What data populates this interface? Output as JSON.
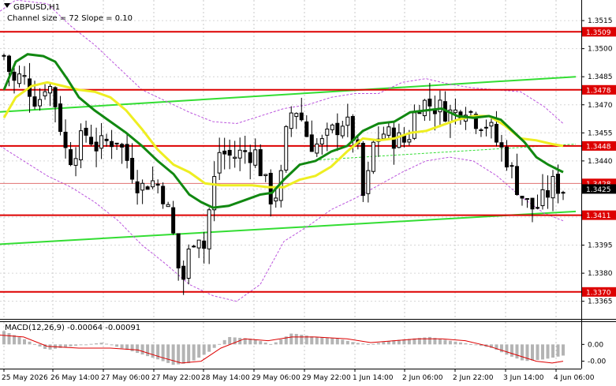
{
  "chart_data": {
    "type": "candlestick",
    "symbol_title": "GBPUSD,H1",
    "indicator_note": "Channel size = 72 Slope = 0.10",
    "y_range": [
      1.3356,
      1.3526
    ],
    "y_ticks": [
      1.3515,
      1.35,
      1.3485,
      1.347,
      1.3455,
      1.344,
      1.3425,
      1.341,
      1.3395,
      1.338,
      1.3365
    ],
    "x_range": [
      0,
      730
    ],
    "x_ticks": [
      "25 May 2026",
      "26 May 14:00",
      "27 May 06:00",
      "27 May 22:00",
      "28 May 14:00",
      "29 May 06:00",
      "29 May 22:00",
      "1 Jun 14:00",
      "2 Jun 06:00",
      "2 Jun 22:00",
      "3 Jun 14:00",
      "4 Jun 06:00"
    ],
    "x_tick_pos": [
      5,
      67,
      131,
      195,
      258,
      322,
      386,
      450,
      513,
      577,
      641,
      705
    ],
    "current_price": "1.3425",
    "level_color": "#dd0000",
    "levels": [
      {
        "value": 1.3509,
        "label": "1.3509"
      },
      {
        "value": 1.3478,
        "label": "1.3478"
      },
      {
        "value": 1.3448,
        "label": "1.3448"
      },
      {
        "value": 1.3411,
        "label": "1.3411"
      },
      {
        "value": 1.337,
        "label": "1.3370"
      }
    ],
    "tags": [
      {
        "value": 1.3509,
        "label": "1.3509",
        "kind": "level"
      },
      {
        "value": 1.3478,
        "label": "1.3478",
        "kind": "level"
      },
      {
        "value": 1.3448,
        "label": "1.3448",
        "kind": "level"
      },
      {
        "value": 1.3428,
        "label": "1.3428",
        "kind": "level"
      },
      {
        "value": 1.3425,
        "label": "1.3425",
        "kind": "price"
      },
      {
        "value": 1.3411,
        "label": "1.3411",
        "kind": "level"
      },
      {
        "value": 1.337,
        "label": "1.3370",
        "kind": "level"
      }
    ],
    "thin_line": {
      "value": 1.3428,
      "color": "#e07070"
    },
    "channel_color": "#33dd33",
    "channel_upper": [
      [
        0,
        1.34662
      ],
      [
        730,
        1.3485
      ]
    ],
    "channel_lower": [
      [
        0,
        1.33955
      ],
      [
        730,
        1.3413
      ]
    ],
    "channel_mid": [
      [
        400,
        1.34405
      ],
      [
        730,
        1.3449
      ]
    ],
    "ma_green": {
      "color": "#118811",
      "points": [
        [
          5,
          1.3478
        ],
        [
          20,
          1.3493
        ],
        [
          35,
          1.3497
        ],
        [
          55,
          1.3496
        ],
        [
          70,
          1.3493
        ],
        [
          85,
          1.3484
        ],
        [
          100,
          1.3474
        ],
        [
          120,
          1.3467
        ],
        [
          140,
          1.3461
        ],
        [
          160,
          1.3455
        ],
        [
          180,
          1.3448
        ],
        [
          200,
          1.344
        ],
        [
          220,
          1.3433
        ],
        [
          240,
          1.3422
        ],
        [
          255,
          1.3418
        ],
        [
          270,
          1.3415
        ],
        [
          290,
          1.3416
        ],
        [
          310,
          1.3419
        ],
        [
          330,
          1.3422
        ],
        [
          345,
          1.3423
        ],
        [
          360,
          1.343
        ],
        [
          380,
          1.3438
        ],
        [
          400,
          1.344
        ],
        [
          420,
          1.3445
        ],
        [
          440,
          1.3448
        ],
        [
          460,
          1.3456
        ],
        [
          480,
          1.346
        ],
        [
          500,
          1.3461
        ],
        [
          520,
          1.3466
        ],
        [
          540,
          1.3467
        ],
        [
          560,
          1.3468
        ],
        [
          580,
          1.3464
        ],
        [
          600,
          1.3463
        ],
        [
          620,
          1.3464
        ],
        [
          635,
          1.3462
        ],
        [
          650,
          1.3456
        ],
        [
          665,
          1.345
        ],
        [
          680,
          1.3442
        ],
        [
          695,
          1.3438
        ],
        [
          714,
          1.3434
        ]
      ]
    },
    "ma_yellow": {
      "color": "#eeee22",
      "points": [
        [
          5,
          1.3463
        ],
        [
          20,
          1.3474
        ],
        [
          40,
          1.348
        ],
        [
          60,
          1.3482
        ],
        [
          80,
          1.348
        ],
        [
          100,
          1.3478
        ],
        [
          120,
          1.3477
        ],
        [
          140,
          1.3474
        ],
        [
          160,
          1.3467
        ],
        [
          180,
          1.3457
        ],
        [
          200,
          1.3446
        ],
        [
          220,
          1.3438
        ],
        [
          240,
          1.3434
        ],
        [
          260,
          1.3428
        ],
        [
          280,
          1.3427
        ],
        [
          300,
          1.3427
        ],
        [
          320,
          1.3427
        ],
        [
          340,
          1.3426
        ],
        [
          360,
          1.3426
        ],
        [
          380,
          1.343
        ],
        [
          400,
          1.3432
        ],
        [
          420,
          1.3437
        ],
        [
          440,
          1.3445
        ],
        [
          460,
          1.3452
        ],
        [
          480,
          1.3451
        ],
        [
          500,
          1.3452
        ],
        [
          520,
          1.3455
        ],
        [
          540,
          1.3456
        ],
        [
          560,
          1.3459
        ],
        [
          580,
          1.3462
        ],
        [
          600,
          1.3464
        ],
        [
          620,
          1.3464
        ],
        [
          640,
          1.3459
        ],
        [
          660,
          1.3452
        ],
        [
          680,
          1.3451
        ],
        [
          700,
          1.3449
        ],
        [
          714,
          1.3448
        ]
      ]
    },
    "env_upper": {
      "color": "#bb55dd",
      "points": [
        [
          0,
          1.352
        ],
        [
          20,
          1.3526
        ],
        [
          60,
          1.3524
        ],
        [
          90,
          1.3512
        ],
        [
          120,
          1.3502
        ],
        [
          150,
          1.349
        ],
        [
          180,
          1.3478
        ],
        [
          210,
          1.3472
        ],
        [
          240,
          1.3466
        ],
        [
          270,
          1.3461
        ],
        [
          300,
          1.346
        ],
        [
          330,
          1.3464
        ],
        [
          360,
          1.3468
        ],
        [
          390,
          1.347
        ],
        [
          420,
          1.3474
        ],
        [
          450,
          1.3476
        ],
        [
          480,
          1.3476
        ],
        [
          510,
          1.3482
        ],
        [
          540,
          1.3484
        ],
        [
          570,
          1.3481
        ],
        [
          600,
          1.3479
        ],
        [
          630,
          1.3478
        ],
        [
          660,
          1.3477
        ],
        [
          690,
          1.3469
        ],
        [
          714,
          1.346
        ]
      ]
    },
    "env_lower": {
      "color": "#bb55dd",
      "points": [
        [
          0,
          1.3448
        ],
        [
          30,
          1.344
        ],
        [
          60,
          1.3432
        ],
        [
          90,
          1.3426
        ],
        [
          120,
          1.3418
        ],
        [
          150,
          1.3408
        ],
        [
          180,
          1.3395
        ],
        [
          210,
          1.3385
        ],
        [
          240,
          1.3374
        ],
        [
          270,
          1.3368
        ],
        [
          300,
          1.3365
        ],
        [
          330,
          1.3374
        ],
        [
          360,
          1.3397
        ],
        [
          390,
          1.3405
        ],
        [
          420,
          1.3414
        ],
        [
          450,
          1.342
        ],
        [
          480,
          1.3427
        ],
        [
          510,
          1.3434
        ],
        [
          540,
          1.344
        ],
        [
          570,
          1.3442
        ],
        [
          600,
          1.344
        ],
        [
          630,
          1.3432
        ],
        [
          660,
          1.3421
        ],
        [
          690,
          1.3412
        ],
        [
          714,
          1.3408
        ]
      ]
    },
    "candle_count": 110,
    "close_path": [
      [
        0,
        1.3503
      ],
      [
        8,
        1.3492
      ],
      [
        18,
        1.3482
      ],
      [
        28,
        1.3486
      ],
      [
        38,
        1.3478
      ],
      [
        48,
        1.3471
      ],
      [
        58,
        1.3482
      ],
      [
        66,
        1.3478
      ],
      [
        76,
        1.346
      ],
      [
        86,
        1.344
      ],
      [
        98,
        1.3448
      ],
      [
        110,
        1.3455
      ],
      [
        124,
        1.3447
      ],
      [
        134,
        1.345
      ],
      [
        148,
        1.3452
      ],
      [
        162,
        1.344
      ],
      [
        178,
        1.3425
      ],
      [
        190,
        1.343
      ],
      [
        204,
        1.3426
      ],
      [
        214,
        1.3412
      ],
      [
        222,
        1.3395
      ],
      [
        230,
        1.3372
      ],
      [
        240,
        1.3392
      ],
      [
        250,
        1.3405
      ],
      [
        258,
        1.3392
      ],
      [
        266,
        1.3416
      ],
      [
        278,
        1.3445
      ],
      [
        294,
        1.3442
      ],
      [
        310,
        1.3445
      ],
      [
        324,
        1.3444
      ],
      [
        336,
        1.3428
      ],
      [
        346,
        1.3418
      ],
      [
        356,
        1.343
      ],
      [
        366,
        1.3465
      ],
      [
        378,
        1.3468
      ],
      [
        392,
        1.345
      ],
      [
        406,
        1.3448
      ],
      [
        420,
        1.3455
      ],
      [
        436,
        1.3462
      ],
      [
        452,
        1.345
      ],
      [
        462,
        1.3415
      ],
      [
        472,
        1.3448
      ],
      [
        486,
        1.3455
      ],
      [
        500,
        1.3452
      ],
      [
        516,
        1.345
      ],
      [
        530,
        1.3472
      ],
      [
        546,
        1.347
      ],
      [
        560,
        1.3468
      ],
      [
        574,
        1.3465
      ],
      [
        590,
        1.347
      ],
      [
        604,
        1.3462
      ],
      [
        618,
        1.346
      ],
      [
        630,
        1.345
      ],
      [
        642,
        1.3442
      ],
      [
        654,
        1.3428
      ],
      [
        666,
        1.3418
      ],
      [
        678,
        1.3414
      ],
      [
        690,
        1.342
      ],
      [
        702,
        1.3428
      ],
      [
        714,
        1.3425
      ]
    ],
    "macd": {
      "label": "MACD(12,26,9) -0.00064 -0.00091",
      "y_range": [
        -0.0013,
        0.0012
      ],
      "y_ticks": [
        "0.00",
        "-0.00"
      ],
      "y_tick_values": [
        0.0,
        -0.0009
      ],
      "hist_color": "#b4b4b4",
      "signal_color": "#dd0000",
      "hist_path": [
        [
          0,
          0.0008
        ],
        [
          30,
          0.0003
        ],
        [
          60,
          -0.0003
        ],
        [
          90,
          -0.0001
        ],
        [
          130,
          0.0001
        ],
        [
          170,
          -0.0004
        ],
        [
          200,
          -0.0008
        ],
        [
          220,
          -0.0011
        ],
        [
          240,
          -0.001
        ],
        [
          265,
          -0.0004
        ],
        [
          290,
          0.0004
        ],
        [
          320,
          0.0003
        ],
        [
          345,
          0.0
        ],
        [
          370,
          0.0006
        ],
        [
          400,
          0.0004
        ],
        [
          430,
          0.0003
        ],
        [
          450,
          0.0001
        ],
        [
          470,
          0.0
        ],
        [
          495,
          0.0002
        ],
        [
          520,
          0.0003
        ],
        [
          545,
          0.0004
        ],
        [
          570,
          0.0002
        ],
        [
          600,
          0.0
        ],
        [
          625,
          -0.0002
        ],
        [
          645,
          -0.0006
        ],
        [
          665,
          -0.0009
        ],
        [
          690,
          -0.0008
        ],
        [
          714,
          -0.0006
        ]
      ],
      "signal_path": [
        [
          0,
          0.0005
        ],
        [
          30,
          0.0004
        ],
        [
          60,
          -0.0001
        ],
        [
          100,
          -0.0002
        ],
        [
          140,
          -0.0002
        ],
        [
          175,
          -0.0003
        ],
        [
          205,
          -0.0007
        ],
        [
          230,
          -0.001
        ],
        [
          255,
          -0.0009
        ],
        [
          280,
          -0.0002
        ],
        [
          310,
          0.0003
        ],
        [
          340,
          0.0002
        ],
        [
          370,
          0.0004
        ],
        [
          400,
          0.0004
        ],
        [
          440,
          0.0003
        ],
        [
          470,
          0.0001
        ],
        [
          500,
          0.0002
        ],
        [
          530,
          0.0003
        ],
        [
          560,
          0.0003
        ],
        [
          590,
          0.0002
        ],
        [
          620,
          -0.0001
        ],
        [
          650,
          -0.0005
        ],
        [
          680,
          -0.0009
        ],
        [
          700,
          -0.001
        ],
        [
          714,
          -0.0009
        ]
      ]
    }
  }
}
